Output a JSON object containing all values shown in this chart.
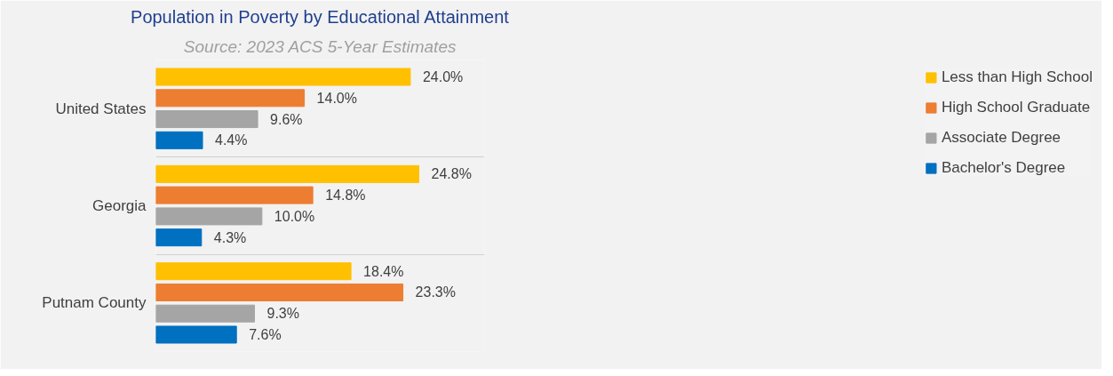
{
  "chart_data": {
    "type": "bar",
    "orientation": "horizontal",
    "title": "Population in Poverty by Educational Attainment",
    "subtitle": "Source: 2023 ACS 5-Year Estimates",
    "categories": [
      "United States",
      "Georgia",
      "Putnam County"
    ],
    "series": [
      {
        "name": "Less than High School",
        "color": "#ffc000",
        "values": [
          24.0,
          24.8,
          18.4
        ],
        "value_labels": [
          "24.0%",
          "24.8%",
          "18.4%"
        ]
      },
      {
        "name": "High School Graduate",
        "color": "#ed7d31",
        "values": [
          14.0,
          14.8,
          23.3
        ],
        "value_labels": [
          "14.0%",
          "14.8%",
          "23.3%"
        ]
      },
      {
        "name": "Associate Degree",
        "color": "#a5a5a5",
        "values": [
          9.6,
          10.0,
          9.3
        ],
        "value_labels": [
          "9.6%",
          "10.0%",
          "9.3%"
        ]
      },
      {
        "name": "Bachelor's Degree",
        "color": "#0070c0",
        "values": [
          4.4,
          4.3,
          7.6
        ],
        "value_labels": [
          "4.4%",
          "4.3%",
          "7.6%"
        ]
      }
    ],
    "grid": "y",
    "legend": "right"
  }
}
